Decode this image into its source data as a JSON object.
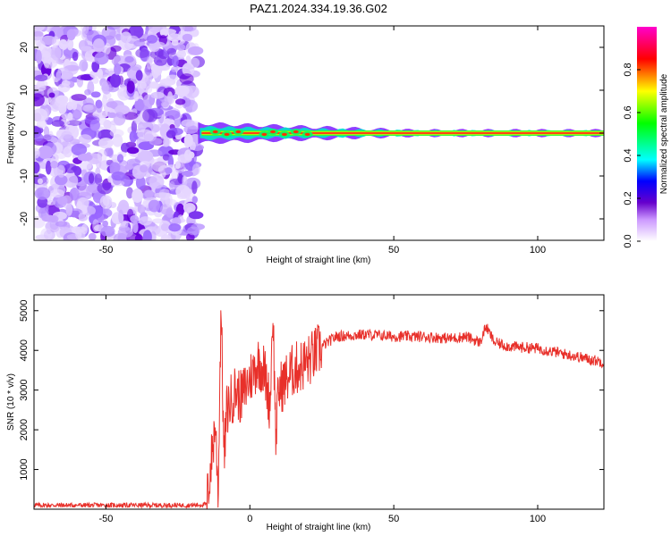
{
  "title": "PAZ1.2024.334.19.36.G02",
  "chart_data": [
    {
      "type": "heatmap",
      "xlabel": "Height of straight line (km)",
      "ylabel": "Frequency (Hz)",
      "xlim": [
        -75,
        123
      ],
      "ylim": [
        -25,
        25
      ],
      "xticks": [
        -50,
        0,
        50,
        100
      ],
      "yticks": [
        -20,
        -10,
        0,
        10,
        20
      ],
      "noise_region_x": [
        -75,
        -18
      ],
      "signal_start_x": -18,
      "colorbar": {
        "label": "Normalized spectral amplitude",
        "range": [
          0,
          1
        ],
        "ticks": [
          "0.0",
          "0.2",
          "0.4",
          "0.6",
          "0.8"
        ],
        "colormap": [
          "#ffffff",
          "#cc99ff",
          "#6600cc",
          "#0000ff",
          "#00ffff",
          "#00ff00",
          "#ffff00",
          "#ff0000",
          "#ff00cc"
        ]
      }
    },
    {
      "type": "line",
      "xlabel": "Height of straight line (km)",
      "ylabel": "SNR (10 * v/v)",
      "xlim": [
        -75,
        123
      ],
      "ylim": [
        0,
        5400
      ],
      "xticks": [
        -50,
        0,
        50,
        100
      ],
      "yticks": [
        1000,
        2000,
        3000,
        4000,
        5000
      ],
      "color": "#e8302a",
      "series": [
        {
          "x": [
            -75,
            -50,
            -20,
            -15,
            -13,
            -12,
            -11,
            -10,
            -9,
            -8,
            -5,
            -3,
            0,
            3,
            5,
            7,
            8,
            9,
            10,
            12,
            15,
            20,
            25,
            30,
            40,
            50,
            60,
            70,
            75,
            80,
            82,
            85,
            90,
            100,
            110,
            123
          ],
          "y": [
            100,
            100,
            100,
            120,
            1500,
            2200,
            400,
            5300,
            1200,
            2500,
            3000,
            2800,
            3300,
            3700,
            3500,
            2600,
            5100,
            1800,
            3000,
            3200,
            3500,
            3700,
            4100,
            4350,
            4400,
            4350,
            4350,
            4300,
            4350,
            4200,
            4600,
            4200,
            4100,
            4050,
            3900,
            3700
          ]
        }
      ]
    }
  ]
}
